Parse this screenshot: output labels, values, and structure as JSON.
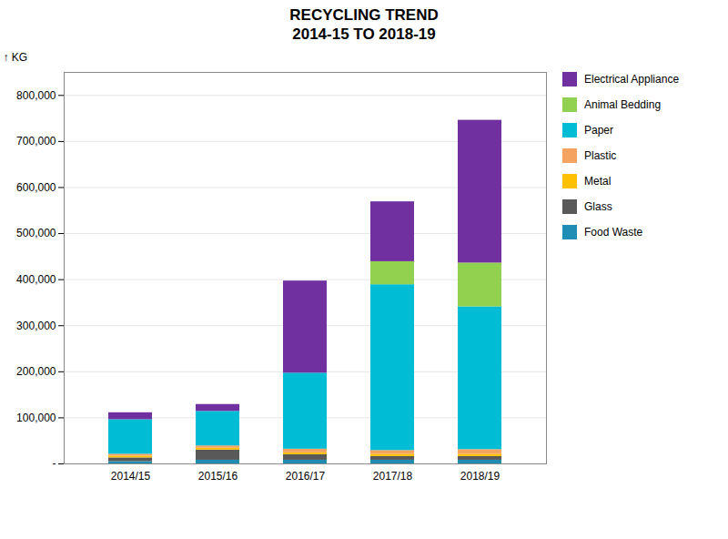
{
  "chart_data": {
    "type": "bar",
    "stacked": true,
    "title": "RECYCLING TREND\n2014-15 TO 2018-19",
    "ylabel": "KG",
    "categories": [
      "2014/15",
      "2015/16",
      "2016/17",
      "2017/18",
      "2018/19"
    ],
    "series": [
      {
        "name": "Food Waste",
        "color": "#1F8DB4",
        "values": [
          5000,
          8000,
          8000,
          8000,
          8000
        ]
      },
      {
        "name": "Glass",
        "color": "#595959",
        "values": [
          8000,
          22000,
          12000,
          8000,
          8000
        ]
      },
      {
        "name": "Metal",
        "color": "#FFC000",
        "values": [
          4000,
          4000,
          4000,
          5000,
          5000
        ]
      },
      {
        "name": "Plastic",
        "color": "#F4A460",
        "values": [
          4000,
          5000,
          8000,
          8000,
          10000
        ]
      },
      {
        "name": "Paper",
        "color": "#00BCD4",
        "values": [
          75000,
          75000,
          165000,
          360000,
          310000
        ]
      },
      {
        "name": "Animal Bedding",
        "color": "#92D050",
        "values": [
          0,
          0,
          0,
          50000,
          95000
        ]
      },
      {
        "name": "Electrical Appliance",
        "color": "#7030A0",
        "values": [
          15000,
          15000,
          200000,
          130000,
          310000
        ]
      }
    ],
    "ylim": [
      0,
      850000
    ],
    "yticks": [
      {
        "value": 0,
        "label": "-"
      },
      {
        "value": 100000,
        "label": "100,000"
      },
      {
        "value": 200000,
        "label": "200,000"
      },
      {
        "value": 300000,
        "label": "300,000"
      },
      {
        "value": 400000,
        "label": "400,000"
      },
      {
        "value": 500000,
        "label": "500,000"
      },
      {
        "value": 600000,
        "label": "600,000"
      },
      {
        "value": 700000,
        "label": "700,000"
      },
      {
        "value": 800000,
        "label": "800,000"
      }
    ],
    "grid": true,
    "legend": "right"
  }
}
